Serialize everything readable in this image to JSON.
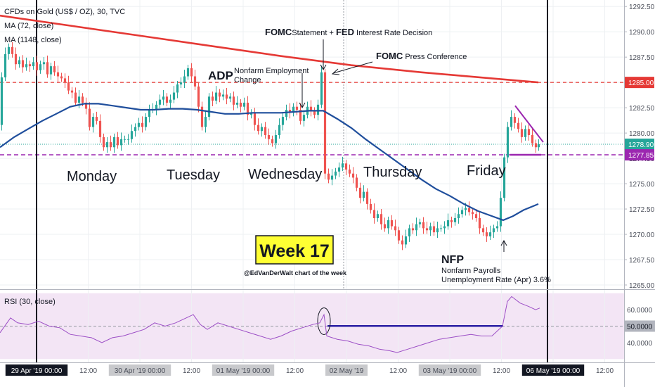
{
  "header": {
    "symbol_line": "CFDs on Gold (US$ / OZ), 30, TVC",
    "ma1_label": "MA (72, close)",
    "ma2_label": "MA (1148, close)",
    "rsi_label": "RSI (30, close)"
  },
  "annotations": {
    "monday": "Monday",
    "tuesday": "Tuesday",
    "wednesday": "Wednesday",
    "thursday": "Thursday",
    "friday": "Friday",
    "adp_bold": "ADP",
    "adp_desc1": "Nonfarm Employment",
    "adp_desc2": "Change",
    "fomc1_bold": "FOMC",
    "fomc1_mid": "Statement + ",
    "fed_bold": "FED",
    "fomc1_tail": " Interest Rate Decision",
    "fomc2_bold": "FOMC",
    "fomc2_tail": " Press Conference",
    "nfp_bold": "NFP",
    "nfp_desc1": "Nonfarm Payrolls",
    "nfp_desc2": "Unemployment Rate (Apr) 3.6%",
    "week_badge": "Week 17",
    "credit": "@EdVanDerWalt chart of the week"
  },
  "colors": {
    "up_candle": "#26a69a",
    "down_candle": "#ef5350",
    "ma_fast": "#1f4e9c",
    "ma_slow": "#e53935",
    "resistance": "#e53935",
    "support": "#9c27b0",
    "rsi_line": "#9c4fc6",
    "rsi_band": "#f3e5f5",
    "week_badge_bg": "#ffff33"
  },
  "chart_data": {
    "type": "candlestick",
    "price_axis": {
      "ylim": [
        1265.0,
        1293.0
      ],
      "ticks": [
        "1292.50",
        "1290.00",
        "1287.50",
        "1285.00",
        "1282.50",
        "1280.00",
        "1277.50",
        "1275.00",
        "1272.50",
        "1270.00",
        "1267.50",
        "1265.00"
      ],
      "price_labels": [
        {
          "value": "1285.00",
          "color": "#e53935"
        },
        {
          "value": "1278.90",
          "color": "#26a69a"
        },
        {
          "value": "1277.85",
          "color": "#9c27b0"
        }
      ],
      "horizontal_levels": [
        {
          "name": "resistance",
          "value": 1285.0,
          "style": "dashed"
        },
        {
          "name": "support",
          "value": 1277.85,
          "style": "dashed"
        },
        {
          "name": "last",
          "value": 1278.9,
          "style": "dotted"
        }
      ]
    },
    "rsi_axis": {
      "ylim": [
        28,
        72
      ],
      "ticks": [
        "60.0000",
        "50.0000",
        "40.0000"
      ],
      "band": [
        30,
        70
      ],
      "midline": 50
    },
    "time_axis_labels": [
      {
        "label": "29 Apr '19  00:00",
        "highlight": true
      },
      {
        "label": "12:00",
        "highlight": false
      },
      {
        "label": "30 Apr '19  00:00",
        "highlight": true
      },
      {
        "label": "12:00",
        "highlight": false
      },
      {
        "label": "01 May '19  00:00",
        "highlight": true
      },
      {
        "label": "12:00",
        "highlight": false
      },
      {
        "label": "02 May '19",
        "highlight": true
      },
      {
        "label": "12:00",
        "highlight": false
      },
      {
        "label": "03 May '19  00:00",
        "highlight": true
      },
      {
        "label": "12:00",
        "highlight": false
      },
      {
        "label": "06 May '19  00:00",
        "highlight": true
      },
      {
        "label": "12:00",
        "highlight": false
      }
    ],
    "price_path": [
      [
        0,
        1280.8
      ],
      [
        5,
        1285.5
      ],
      [
        10,
        1287.8
      ],
      [
        15,
        1288.5
      ],
      [
        20,
        1287.8
      ],
      [
        25,
        1286.8
      ],
      [
        30,
        1287.2
      ],
      [
        35,
        1286.5
      ],
      [
        40,
        1286.8
      ],
      [
        45,
        1286.6
      ],
      [
        50,
        1287.0
      ],
      [
        55,
        1286.2
      ],
      [
        60,
        1286.8
      ],
      [
        65,
        1287.0
      ],
      [
        70,
        1285.8
      ],
      [
        75,
        1286.6
      ],
      [
        80,
        1286.0
      ],
      [
        85,
        1285.6
      ],
      [
        90,
        1285.4
      ],
      [
        95,
        1285.0
      ],
      [
        100,
        1284.2
      ],
      [
        105,
        1284.0
      ],
      [
        110,
        1283.0
      ],
      [
        115,
        1283.6
      ],
      [
        120,
        1283.0
      ],
      [
        125,
        1282.4
      ],
      [
        130,
        1280.6
      ],
      [
        135,
        1281.6
      ],
      [
        140,
        1281.2
      ],
      [
        145,
        1279.6
      ],
      [
        150,
        1278.6
      ],
      [
        155,
        1279.1
      ],
      [
        160,
        1278.6
      ],
      [
        165,
        1279.6
      ],
      [
        170,
        1278.8
      ],
      [
        175,
        1279.4
      ],
      [
        180,
        1279.4
      ],
      [
        185,
        1279.4
      ],
      [
        190,
        1280.2
      ],
      [
        195,
        1280.6
      ],
      [
        200,
        1281.0
      ],
      [
        205,
        1280.6
      ],
      [
        210,
        1281.6
      ],
      [
        215,
        1282.3
      ],
      [
        220,
        1282.3
      ],
      [
        225,
        1282.8
      ],
      [
        230,
        1283.3
      ],
      [
        235,
        1283.6
      ],
      [
        240,
        1283.0
      ],
      [
        245,
        1283.3
      ],
      [
        250,
        1284.0
      ],
      [
        255,
        1284.8
      ],
      [
        260,
        1285.0
      ],
      [
        265,
        1285.6
      ],
      [
        270,
        1286.4
      ],
      [
        275,
        1285.6
      ],
      [
        280,
        1284.6
      ],
      [
        285,
        1282.6
      ],
      [
        290,
        1280.6
      ],
      [
        295,
        1281.6
      ],
      [
        300,
        1283.6
      ],
      [
        305,
        1283.2
      ],
      [
        310,
        1284.0
      ],
      [
        315,
        1283.6
      ],
      [
        320,
        1283.8
      ],
      [
        325,
        1283.4
      ],
      [
        330,
        1283.6
      ],
      [
        335,
        1282.8
      ],
      [
        340,
        1283.0
      ],
      [
        345,
        1282.6
      ],
      [
        350,
        1283.0
      ],
      [
        355,
        1281.8
      ],
      [
        360,
        1282.0
      ],
      [
        365,
        1280.8
      ],
      [
        370,
        1280.2
      ],
      [
        375,
        1280.6
      ],
      [
        380,
        1279.8
      ],
      [
        385,
        1279.4
      ],
      [
        390,
        1279.0
      ],
      [
        395,
        1279.8
      ],
      [
        400,
        1280.8
      ],
      [
        405,
        1281.6
      ],
      [
        410,
        1282.3
      ],
      [
        415,
        1282.0
      ],
      [
        420,
        1282.6
      ],
      [
        425,
        1282.3
      ],
      [
        430,
        1281.2
      ],
      [
        435,
        1281.8
      ],
      [
        440,
        1282.6
      ],
      [
        445,
        1282.2
      ],
      [
        450,
        1281.8
      ],
      [
        455,
        1282.8
      ],
      [
        460,
        1286.0
      ],
      [
        465,
        1276.0
      ],
      [
        470,
        1275.4
      ],
      [
        475,
        1275.8
      ],
      [
        480,
        1276.2
      ],
      [
        485,
        1276.6
      ],
      [
        490,
        1277.0
      ],
      [
        495,
        1276.4
      ],
      [
        500,
        1276.0
      ],
      [
        505,
        1275.6
      ],
      [
        510,
        1274.6
      ],
      [
        515,
        1273.6
      ],
      [
        520,
        1274.2
      ],
      [
        525,
        1273.0
      ],
      [
        530,
        1272.4
      ],
      [
        535,
        1271.6
      ],
      [
        540,
        1272.0
      ],
      [
        545,
        1271.0
      ],
      [
        550,
        1270.6
      ],
      [
        555,
        1271.4
      ],
      [
        560,
        1270.8
      ],
      [
        565,
        1270.4
      ],
      [
        570,
        1269.4
      ],
      [
        575,
        1269.0
      ],
      [
        580,
        1269.8
      ],
      [
        585,
        1270.6
      ],
      [
        590,
        1270.4
      ],
      [
        595,
        1271.0
      ],
      [
        600,
        1271.2
      ],
      [
        605,
        1270.6
      ],
      [
        610,
        1270.4
      ],
      [
        615,
        1270.8
      ],
      [
        620,
        1270.2
      ],
      [
        625,
        1270.6
      ],
      [
        630,
        1270.6
      ],
      [
        635,
        1270.8
      ],
      [
        640,
        1271.4
      ],
      [
        645,
        1271.2
      ],
      [
        650,
        1271.6
      ],
      [
        655,
        1272.0
      ],
      [
        660,
        1272.4
      ],
      [
        665,
        1272.6
      ],
      [
        670,
        1272.2
      ],
      [
        675,
        1272.0
      ],
      [
        680,
        1271.6
      ],
      [
        685,
        1270.6
      ],
      [
        690,
        1270.2
      ],
      [
        695,
        1269.8
      ],
      [
        700,
        1270.2
      ],
      [
        705,
        1270.6
      ],
      [
        710,
        1270.8
      ],
      [
        715,
        1273.6
      ],
      [
        720,
        1277.6
      ],
      [
        725,
        1280.6
      ],
      [
        730,
        1281.6
      ],
      [
        735,
        1281.0
      ],
      [
        740,
        1280.4
      ],
      [
        745,
        1279.6
      ],
      [
        750,
        1280.4
      ],
      [
        755,
        1279.8
      ],
      [
        760,
        1279.0
      ],
      [
        765,
        1278.6
      ],
      [
        768,
        1278.9
      ]
    ],
    "ma_fast_path": [
      [
        0,
        1278.6
      ],
      [
        20,
        1279.6
      ],
      [
        40,
        1280.4
      ],
      [
        60,
        1281.2
      ],
      [
        80,
        1281.9
      ],
      [
        100,
        1282.6
      ],
      [
        120,
        1282.9
      ],
      [
        140,
        1282.9
      ],
      [
        160,
        1282.7
      ],
      [
        180,
        1282.5
      ],
      [
        200,
        1282.3
      ],
      [
        220,
        1282.3
      ],
      [
        240,
        1282.4
      ],
      [
        260,
        1282.4
      ],
      [
        280,
        1282.3
      ],
      [
        300,
        1282.1
      ],
      [
        320,
        1281.9
      ],
      [
        340,
        1281.9
      ],
      [
        360,
        1282.0
      ],
      [
        380,
        1282.0
      ],
      [
        400,
        1282.0
      ],
      [
        420,
        1282.1
      ],
      [
        440,
        1282.2
      ],
      [
        460,
        1282.2
      ],
      [
        480,
        1281.4
      ],
      [
        500,
        1280.5
      ],
      [
        520,
        1279.4
      ],
      [
        540,
        1278.4
      ],
      [
        560,
        1277.4
      ],
      [
        580,
        1276.4
      ],
      [
        600,
        1275.4
      ],
      [
        620,
        1274.5
      ],
      [
        640,
        1273.8
      ],
      [
        660,
        1273.0
      ],
      [
        680,
        1272.3
      ],
      [
        700,
        1271.8
      ],
      [
        716,
        1271.4
      ],
      [
        730,
        1271.8
      ],
      [
        745,
        1272.4
      ],
      [
        766,
        1273.0
      ]
    ],
    "ma_slow_path": [
      [
        0,
        1291.6
      ],
      [
        100,
        1290.6
      ],
      [
        200,
        1289.6
      ],
      [
        300,
        1288.6
      ],
      [
        400,
        1287.6
      ],
      [
        500,
        1286.7
      ],
      [
        600,
        1286.0
      ],
      [
        700,
        1285.4
      ],
      [
        766,
        1285.0
      ]
    ],
    "rsi_path": [
      [
        0,
        46
      ],
      [
        15,
        55
      ],
      [
        25,
        52
      ],
      [
        40,
        51
      ],
      [
        55,
        53
      ],
      [
        70,
        50
      ],
      [
        85,
        49
      ],
      [
        100,
        45
      ],
      [
        115,
        44
      ],
      [
        130,
        43
      ],
      [
        145,
        40
      ],
      [
        160,
        43
      ],
      [
        175,
        44
      ],
      [
        190,
        46
      ],
      [
        205,
        48
      ],
      [
        220,
        52
      ],
      [
        235,
        50
      ],
      [
        250,
        52
      ],
      [
        265,
        55
      ],
      [
        275,
        57
      ],
      [
        285,
        51
      ],
      [
        295,
        48
      ],
      [
        310,
        52
      ],
      [
        325,
        50
      ],
      [
        340,
        48
      ],
      [
        355,
        46
      ],
      [
        370,
        44
      ],
      [
        385,
        42
      ],
      [
        400,
        44
      ],
      [
        415,
        47
      ],
      [
        430,
        49
      ],
      [
        445,
        51
      ],
      [
        455,
        52
      ],
      [
        461,
        57
      ],
      [
        465,
        44
      ],
      [
        480,
        42
      ],
      [
        495,
        41
      ],
      [
        510,
        39
      ],
      [
        525,
        38
      ],
      [
        540,
        36
      ],
      [
        555,
        35
      ],
      [
        565,
        34
      ],
      [
        580,
        36
      ],
      [
        595,
        38
      ],
      [
        610,
        40
      ],
      [
        625,
        42
      ],
      [
        640,
        43
      ],
      [
        655,
        44
      ],
      [
        670,
        45
      ],
      [
        685,
        44
      ],
      [
        700,
        44
      ],
      [
        715,
        50
      ],
      [
        722,
        65
      ],
      [
        728,
        68
      ],
      [
        740,
        64
      ],
      [
        752,
        62
      ],
      [
        762,
        60
      ],
      [
        768,
        61
      ]
    ],
    "drawings": {
      "rsi_horizontal": {
        "x": [
          466,
          716
        ],
        "value": 50.1
      },
      "triangle_upper": {
        "x": [
          733,
          773
        ],
        "value": [
          1282.7,
          1279.1
        ]
      },
      "support_segment": {
        "x": [
          726,
          770
        ],
        "value": 1277.85
      },
      "rsi_circle_center": {
        "x": 461,
        "value": 53
      }
    }
  }
}
